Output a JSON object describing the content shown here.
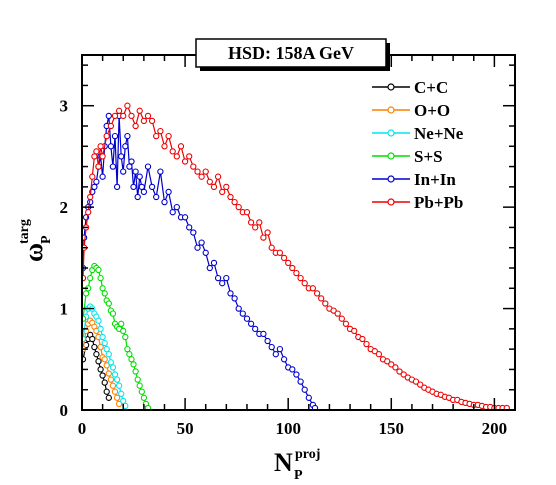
{
  "chart_data": {
    "type": "scatter",
    "title": "HSD: 158A GeV",
    "xlabel": {
      "main": "N",
      "sub": "P",
      "sup": "proj"
    },
    "ylabel": {
      "main": "ω",
      "sub": "P",
      "sup": "targ"
    },
    "xlim": [
      0,
      210
    ],
    "ylim": [
      0,
      3.5
    ],
    "x_ticks": [
      0,
      50,
      100,
      150,
      200
    ],
    "y_ticks": [
      0,
      1,
      2,
      3
    ],
    "grid": false,
    "legend_position": "top-right",
    "marker": "open-circle",
    "series": [
      {
        "name": "C+C",
        "color": "#000000",
        "x": [
          0.5,
          2,
          3,
          4,
          5,
          6,
          7,
          8,
          9,
          10,
          11,
          12,
          13
        ],
        "y": [
          0.5,
          0.64,
          0.7,
          0.74,
          0.7,
          0.62,
          0.55,
          0.48,
          0.4,
          0.34,
          0.27,
          0.18,
          0.12
        ]
      },
      {
        "name": "O+O",
        "color": "#ff7f00",
        "x": [
          0.5,
          2,
          3,
          4,
          5,
          6,
          7,
          8,
          9,
          10,
          11,
          12,
          13,
          14,
          15,
          16,
          17,
          18
        ],
        "y": [
          0.6,
          0.78,
          0.85,
          0.88,
          0.86,
          0.82,
          0.78,
          0.72,
          0.62,
          0.52,
          0.5,
          0.44,
          0.36,
          0.3,
          0.24,
          0.18,
          0.12,
          0.06
        ]
      },
      {
        "name": "Ne+Ne",
        "color": "#00e5ee",
        "x": [
          0.5,
          2,
          3,
          4,
          5,
          6,
          7,
          8,
          9,
          10,
          11,
          12,
          13,
          14,
          15,
          16,
          17,
          18,
          19,
          20,
          21
        ],
        "y": [
          0.7,
          0.92,
          1.0,
          1.02,
          1.0,
          0.95,
          0.92,
          0.88,
          0.8,
          0.72,
          0.66,
          0.6,
          0.55,
          0.47,
          0.42,
          0.35,
          0.3,
          0.24,
          0.16,
          0.09,
          0.04
        ]
      },
      {
        "name": "S+S",
        "color": "#00dd00",
        "x": [
          0.5,
          2,
          3,
          4,
          5,
          6,
          7,
          8,
          9,
          10,
          11,
          12,
          13,
          14,
          15,
          16,
          17,
          18,
          19,
          20,
          21,
          22,
          23,
          24,
          25,
          26,
          27,
          28,
          29,
          30,
          31,
          32
        ],
        "y": [
          0.9,
          1.15,
          1.2,
          1.3,
          1.38,
          1.42,
          1.4,
          1.38,
          1.3,
          1.2,
          1.15,
          1.08,
          1.05,
          0.98,
          0.95,
          0.85,
          0.82,
          0.8,
          0.85,
          0.78,
          0.72,
          0.6,
          0.55,
          0.5,
          0.45,
          0.38,
          0.3,
          0.24,
          0.18,
          0.12,
          0.06,
          0.02
        ]
      },
      {
        "name": "In+In",
        "color": "#0000cc",
        "x": [
          0.5,
          1,
          2,
          3,
          4,
          5,
          6,
          7,
          8,
          9,
          10,
          11,
          12,
          13,
          14,
          15,
          16,
          17,
          18,
          19,
          20,
          21,
          22,
          23,
          24,
          25,
          26,
          27,
          28,
          29,
          30,
          32,
          34,
          36,
          38,
          40,
          42,
          44,
          46,
          48,
          50,
          52,
          54,
          56,
          58,
          60,
          62,
          64,
          66,
          68,
          70,
          72,
          74,
          76,
          78,
          80,
          82,
          84,
          86,
          88,
          90,
          92,
          94,
          96,
          98,
          100,
          102,
          104,
          106,
          108,
          110,
          112,
          113
        ],
        "y": [
          1.4,
          1.7,
          1.9,
          2.0,
          2.05,
          2.15,
          2.2,
          2.25,
          2.4,
          2.5,
          2.3,
          2.6,
          2.8,
          2.9,
          2.6,
          2.4,
          2.7,
          2.2,
          2.9,
          2.5,
          2.35,
          2.6,
          2.7,
          2.4,
          2.45,
          2.2,
          2.35,
          2.1,
          2.3,
          2.2,
          2.15,
          2.4,
          2.2,
          2.1,
          2.35,
          2.05,
          2.15,
          1.95,
          2.0,
          1.9,
          1.9,
          1.8,
          1.75,
          1.6,
          1.65,
          1.55,
          1.4,
          1.45,
          1.3,
          1.25,
          1.3,
          1.15,
          1.1,
          1.0,
          0.95,
          0.9,
          0.85,
          0.8,
          0.75,
          0.75,
          0.68,
          0.62,
          0.55,
          0.6,
          0.5,
          0.42,
          0.4,
          0.35,
          0.28,
          0.2,
          0.12,
          0.05,
          0.02
        ]
      },
      {
        "name": "Pb+Pb",
        "color": "#ee0000",
        "x": [
          0.5,
          1,
          2,
          3,
          4,
          5,
          6,
          7,
          8,
          9,
          10,
          12,
          14,
          16,
          18,
          20,
          22,
          24,
          26,
          28,
          30,
          32,
          34,
          36,
          38,
          40,
          42,
          44,
          46,
          48,
          50,
          52,
          54,
          56,
          58,
          60,
          62,
          64,
          66,
          68,
          70,
          72,
          74,
          76,
          78,
          80,
          82,
          84,
          86,
          88,
          90,
          92,
          94,
          96,
          98,
          100,
          102,
          104,
          106,
          108,
          110,
          112,
          114,
          116,
          118,
          120,
          122,
          124,
          126,
          128,
          130,
          132,
          134,
          136,
          138,
          140,
          142,
          144,
          146,
          148,
          150,
          152,
          154,
          156,
          158,
          160,
          162,
          164,
          166,
          168,
          170,
          172,
          174,
          176,
          178,
          180,
          182,
          184,
          186,
          188,
          190,
          192,
          194,
          196,
          198,
          200,
          202,
          204,
          206
        ],
        "y": [
          1.3,
          1.6,
          1.8,
          1.95,
          2.1,
          2.3,
          2.5,
          2.55,
          2.4,
          2.6,
          2.5,
          2.7,
          2.8,
          2.9,
          2.95,
          2.9,
          3.0,
          2.9,
          2.8,
          2.95,
          2.85,
          2.9,
          2.85,
          2.7,
          2.75,
          2.6,
          2.7,
          2.55,
          2.5,
          2.6,
          2.45,
          2.5,
          2.4,
          2.35,
          2.3,
          2.35,
          2.25,
          2.2,
          2.3,
          2.15,
          2.2,
          2.1,
          2.05,
          2.0,
          1.95,
          1.95,
          1.85,
          1.8,
          1.85,
          1.7,
          1.75,
          1.6,
          1.55,
          1.55,
          1.5,
          1.45,
          1.4,
          1.35,
          1.3,
          1.25,
          1.2,
          1.2,
          1.15,
          1.1,
          1.05,
          1.0,
          0.98,
          0.95,
          0.9,
          0.85,
          0.8,
          0.78,
          0.72,
          0.7,
          0.65,
          0.6,
          0.58,
          0.55,
          0.5,
          0.48,
          0.45,
          0.42,
          0.38,
          0.35,
          0.32,
          0.3,
          0.28,
          0.25,
          0.22,
          0.2,
          0.18,
          0.16,
          0.15,
          0.13,
          0.12,
          0.1,
          0.1,
          0.08,
          0.07,
          0.06,
          0.05,
          0.05,
          0.04,
          0.03,
          0.03,
          0.02,
          0.02,
          0.02,
          0.02
        ]
      }
    ]
  }
}
